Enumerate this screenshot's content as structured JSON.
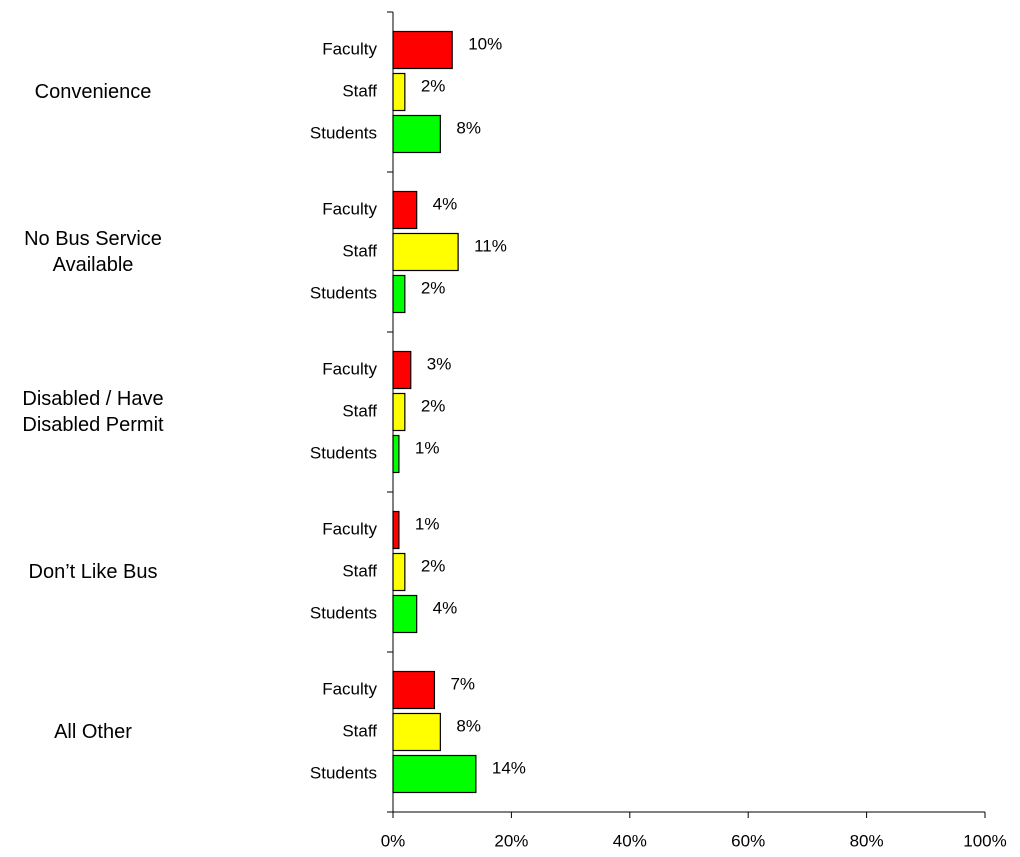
{
  "chart_data": {
    "type": "bar",
    "orientation": "horizontal",
    "categories": [
      "Convenience",
      "No Bus Service Available",
      "Disabled / Have Disabled Permit",
      "Don’t Like Bus",
      "All Other"
    ],
    "series": [
      {
        "name": "Faculty",
        "color": "#ff0000",
        "values": [
          10,
          4,
          3,
          1,
          7
        ],
        "value_labels": [
          "10%",
          "4%",
          "3%",
          "1%",
          "7%"
        ]
      },
      {
        "name": "Staff",
        "color": "#ffff00",
        "values": [
          2,
          11,
          2,
          2,
          8
        ],
        "value_labels": [
          "2%",
          "11%",
          "2%",
          "2%",
          "8%"
        ]
      },
      {
        "name": "Students",
        "color": "#00ff00",
        "values": [
          8,
          2,
          1,
          4,
          14
        ],
        "value_labels": [
          "8%",
          "2%",
          "1%",
          "4%",
          "14%"
        ]
      }
    ],
    "xlim": [
      0,
      100
    ],
    "xticks": [
      {
        "value": 0,
        "label": "0%"
      },
      {
        "value": 20,
        "label": "20%"
      },
      {
        "value": 40,
        "label": "40%"
      },
      {
        "value": 60,
        "label": "60%"
      },
      {
        "value": 80,
        "label": "80%"
      },
      {
        "value": 100,
        "label": "100%"
      }
    ]
  }
}
